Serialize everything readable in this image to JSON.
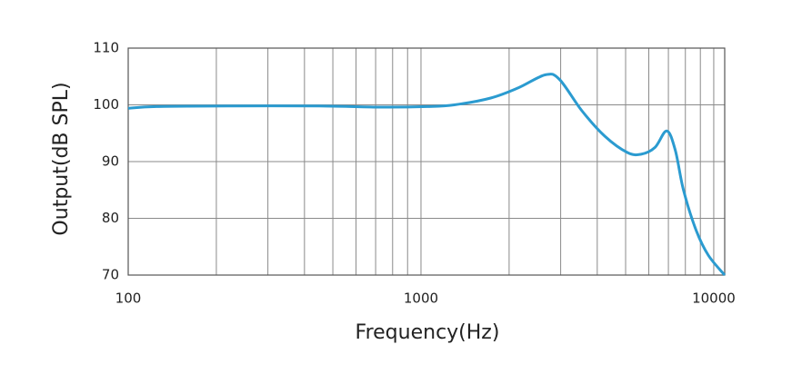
{
  "chart_data": {
    "type": "line",
    "xlabel": "Frequency(Hz)",
    "ylabel": "Output(dB SPL)",
    "xscale": "log",
    "xlim": [
      100,
      10900
    ],
    "xticks": [
      100,
      1000,
      10000
    ],
    "xminor": [
      200,
      300,
      400,
      500,
      600,
      700,
      800,
      900,
      2000,
      3000,
      4000,
      5000,
      6000,
      7000,
      8000,
      9000
    ],
    "ylim": [
      70,
      110
    ],
    "yticks": [
      70,
      80,
      90,
      100,
      110
    ],
    "grid": true,
    "series": [
      {
        "name": "Output",
        "color": "#2b9bd0",
        "x": [
          100,
          125,
          220,
          450,
          730,
          1050,
          1300,
          1730,
          2150,
          2660,
          2970,
          3540,
          4240,
          5070,
          5650,
          6300,
          6910,
          7390,
          7880,
          8690,
          9580,
          10900
        ],
        "values": [
          99.4,
          99.7,
          99.8,
          99.8,
          99.6,
          99.7,
          100,
          101.2,
          103,
          105.3,
          104.5,
          99,
          94.5,
          91.6,
          91.3,
          92.5,
          95.4,
          92,
          85,
          78,
          73.5,
          70
        ]
      }
    ]
  }
}
